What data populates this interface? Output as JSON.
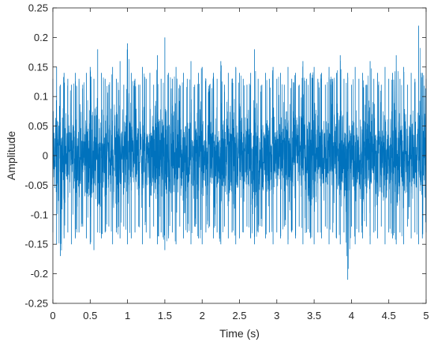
{
  "chart_data": {
    "type": "line",
    "title": "",
    "xlabel": "Time (s)",
    "ylabel": "Amplitude",
    "xlim": [
      0,
      5
    ],
    "ylim": [
      -0.25,
      0.25
    ],
    "xticks": [
      0,
      0.5,
      1,
      1.5,
      2,
      2.5,
      3,
      3.5,
      4,
      4.5,
      5
    ],
    "xtick_labels": [
      "0",
      "0.5",
      "1",
      "1.5",
      "2",
      "2.5",
      "3",
      "3.5",
      "4",
      "4.5",
      "5"
    ],
    "yticks": [
      -0.25,
      -0.2,
      -0.15,
      -0.1,
      -0.05,
      0,
      0.05,
      0.1,
      0.15,
      0.2,
      0.25
    ],
    "ytick_labels": [
      "-0.25",
      "-0.2",
      "-0.15",
      "-0.1",
      "-0.05",
      "0",
      "0.05",
      "0.1",
      "0.15",
      "0.2",
      "0.25"
    ],
    "grid": false,
    "series": [
      {
        "color": "#0072BD",
        "x": [
          0,
          0.05,
          0.1,
          0.15,
          0.2,
          0.25,
          0.3,
          0.35,
          0.4,
          0.45,
          0.5,
          0.55,
          0.6,
          0.65,
          0.7,
          0.75,
          0.8,
          0.85,
          0.9,
          0.95,
          1,
          1.05,
          1.1,
          1.15,
          1.2,
          1.25,
          1.3,
          1.35,
          1.4,
          1.45,
          1.5,
          1.55,
          1.6,
          1.65,
          1.7,
          1.75,
          1.8,
          1.85,
          1.9,
          1.95,
          2,
          2.05,
          2.1,
          2.15,
          2.2,
          2.25,
          2.3,
          2.35,
          2.4,
          2.45,
          2.5,
          2.55,
          2.6,
          2.65,
          2.7,
          2.75,
          2.8,
          2.85,
          2.9,
          2.95,
          3,
          3.05,
          3.1,
          3.15,
          3.2,
          3.25,
          3.3,
          3.35,
          3.4,
          3.45,
          3.5,
          3.55,
          3.6,
          3.65,
          3.7,
          3.75,
          3.8,
          3.85,
          3.9,
          3.95,
          4,
          4.05,
          4.1,
          4.15,
          4.2,
          4.25,
          4.3,
          4.35,
          4.4,
          4.45,
          4.5,
          4.55,
          4.6,
          4.65,
          4.7,
          4.75,
          4.8,
          4.85,
          4.9,
          4.95,
          5
        ],
        "y_max": [
          0.13,
          0.15,
          0.12,
          0.14,
          0.13,
          0.12,
          0.14,
          0.13,
          0.12,
          0.14,
          0.15,
          0.13,
          0.18,
          0.14,
          0.13,
          0.12,
          0.15,
          0.13,
          0.16,
          0.12,
          0.19,
          0.14,
          0.13,
          0.12,
          0.15,
          0.13,
          0.14,
          0.12,
          0.17,
          0.13,
          0.2,
          0.14,
          0.13,
          0.15,
          0.12,
          0.14,
          0.13,
          0.16,
          0.12,
          0.14,
          0.15,
          0.13,
          0.12,
          0.14,
          0.13,
          0.16,
          0.12,
          0.14,
          0.13,
          0.15,
          0.14,
          0.13,
          0.12,
          0.14,
          0.18,
          0.13,
          0.12,
          0.14,
          0.13,
          0.15,
          0.13,
          0.14,
          0.12,
          0.15,
          0.13,
          0.14,
          0.12,
          0.16,
          0.13,
          0.14,
          0.15,
          0.13,
          0.14,
          0.12,
          0.15,
          0.13,
          0.14,
          0.17,
          0.13,
          0.14,
          0.12,
          0.15,
          0.13,
          0.14,
          0.12,
          0.16,
          0.13,
          0.14,
          0.12,
          0.15,
          0.13,
          0.14,
          0.17,
          0.13,
          0.15,
          0.12,
          0.14,
          0.13,
          0.22,
          0.14,
          0.13
        ],
        "y_min": [
          -0.13,
          -0.15,
          -0.17,
          -0.14,
          -0.13,
          -0.15,
          -0.14,
          -0.13,
          -0.12,
          -0.14,
          -0.15,
          -0.16,
          -0.13,
          -0.14,
          -0.13,
          -0.12,
          -0.15,
          -0.13,
          -0.14,
          -0.12,
          -0.15,
          -0.14,
          -0.13,
          -0.12,
          -0.15,
          -0.13,
          -0.14,
          -0.12,
          -0.15,
          -0.13,
          -0.16,
          -0.14,
          -0.13,
          -0.15,
          -0.12,
          -0.14,
          -0.13,
          -0.15,
          -0.12,
          -0.14,
          -0.15,
          -0.13,
          -0.12,
          -0.14,
          -0.13,
          -0.15,
          -0.12,
          -0.14,
          -0.13,
          -0.15,
          -0.14,
          -0.13,
          -0.12,
          -0.14,
          -0.15,
          -0.13,
          -0.12,
          -0.14,
          -0.13,
          -0.15,
          -0.13,
          -0.14,
          -0.12,
          -0.15,
          -0.13,
          -0.14,
          -0.12,
          -0.15,
          -0.13,
          -0.14,
          -0.15,
          -0.13,
          -0.14,
          -0.12,
          -0.15,
          -0.13,
          -0.14,
          -0.15,
          -0.13,
          -0.21,
          -0.12,
          -0.15,
          -0.13,
          -0.14,
          -0.12,
          -0.15,
          -0.13,
          -0.14,
          -0.12,
          -0.15,
          -0.13,
          -0.14,
          -0.15,
          -0.13,
          -0.15,
          -0.12,
          -0.14,
          -0.13,
          -0.15,
          -0.14,
          -0.13
        ]
      }
    ]
  }
}
